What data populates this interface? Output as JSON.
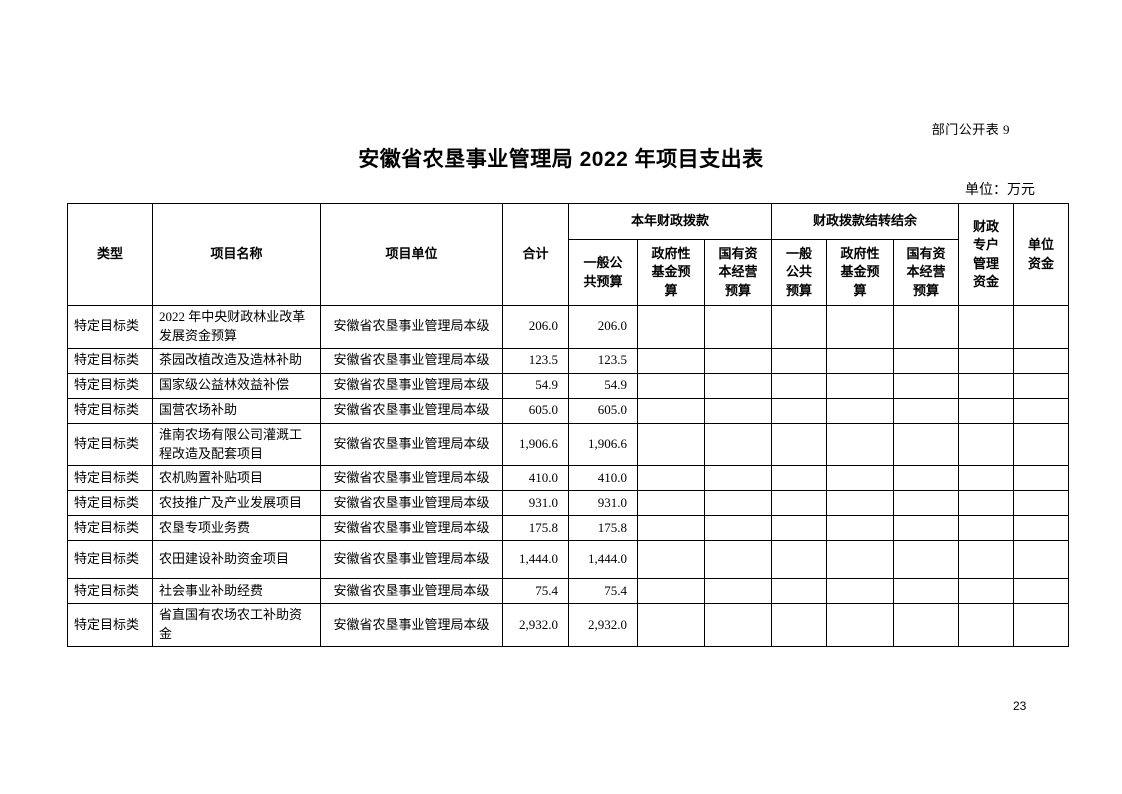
{
  "page": {
    "corner_label": "部门公开表 9",
    "title": "安徽省农垦事业管理局 2022 年项目支出表",
    "unit_label": "单位：万元",
    "page_number": "23"
  },
  "table": {
    "header": {
      "type": "类型",
      "project_name": "项目名称",
      "project_unit": "项目单位",
      "total": "合计",
      "current_year_group": "本年财政拨款",
      "carryover_group": "财政拨款结转结余",
      "cy_general_public": "一般公\n共预算",
      "cy_government_fund": "政府性\n基金预\n算",
      "cy_state_capital": "国有资\n本经营\n预算",
      "co_general_public": "一般\n公共\n预算",
      "co_government_fund": "政府性\n基金预\n算",
      "co_state_capital": "国有资\n本经营\n预算",
      "fiscal_special_account": "财政\n专户\n管理\n资金",
      "unit_funds": "单位\n资金"
    },
    "rows": [
      {
        "type": "特定目标类",
        "name": "2022 年中央财政林业改革发展资金预算",
        "unit": "安徽省农垦事业管理局本级",
        "total": "206.0",
        "cy_general": "206.0",
        "cy_gov_fund": "",
        "cy_state_capital": "",
        "co_general": "",
        "co_gov_fund": "",
        "co_state_capital": "",
        "special_account": "",
        "unit_funds": ""
      },
      {
        "type": "特定目标类",
        "name": "茶园改植改造及造林补助",
        "unit": "安徽省农垦事业管理局本级",
        "total": "123.5",
        "cy_general": "123.5",
        "cy_gov_fund": "",
        "cy_state_capital": "",
        "co_general": "",
        "co_gov_fund": "",
        "co_state_capital": "",
        "special_account": "",
        "unit_funds": ""
      },
      {
        "type": "特定目标类",
        "name": "国家级公益林效益补偿",
        "unit": "安徽省农垦事业管理局本级",
        "total": "54.9",
        "cy_general": "54.9",
        "cy_gov_fund": "",
        "cy_state_capital": "",
        "co_general": "",
        "co_gov_fund": "",
        "co_state_capital": "",
        "special_account": "",
        "unit_funds": ""
      },
      {
        "type": "特定目标类",
        "name": "国营农场补助",
        "unit": "安徽省农垦事业管理局本级",
        "total": "605.0",
        "cy_general": "605.0",
        "cy_gov_fund": "",
        "cy_state_capital": "",
        "co_general": "",
        "co_gov_fund": "",
        "co_state_capital": "",
        "special_account": "",
        "unit_funds": ""
      },
      {
        "type": "特定目标类",
        "name": "淮南农场有限公司灌溉工程改造及配套项目",
        "unit": "安徽省农垦事业管理局本级",
        "total": "1,906.6",
        "cy_general": "1,906.6",
        "cy_gov_fund": "",
        "cy_state_capital": "",
        "co_general": "",
        "co_gov_fund": "",
        "co_state_capital": "",
        "special_account": "",
        "unit_funds": ""
      },
      {
        "type": "特定目标类",
        "name": "农机购置补贴项目",
        "unit": "安徽省农垦事业管理局本级",
        "total": "410.0",
        "cy_general": "410.0",
        "cy_gov_fund": "",
        "cy_state_capital": "",
        "co_general": "",
        "co_gov_fund": "",
        "co_state_capital": "",
        "special_account": "",
        "unit_funds": ""
      },
      {
        "type": "特定目标类",
        "name": "农技推广及产业发展项目",
        "unit": "安徽省农垦事业管理局本级",
        "total": "931.0",
        "cy_general": "931.0",
        "cy_gov_fund": "",
        "cy_state_capital": "",
        "co_general": "",
        "co_gov_fund": "",
        "co_state_capital": "",
        "special_account": "",
        "unit_funds": ""
      },
      {
        "type": "特定目标类",
        "name": "农垦专项业务费",
        "unit": "安徽省农垦事业管理局本级",
        "total": "175.8",
        "cy_general": "175.8",
        "cy_gov_fund": "",
        "cy_state_capital": "",
        "co_general": "",
        "co_gov_fund": "",
        "co_state_capital": "",
        "special_account": "",
        "unit_funds": ""
      },
      {
        "type": "特定目标类",
        "name": "农田建设补助资金项目",
        "unit": "安徽省农垦事业管理局本级",
        "total": "1,444.0",
        "cy_general": "1,444.0",
        "cy_gov_fund": "",
        "cy_state_capital": "",
        "co_general": "",
        "co_gov_fund": "",
        "co_state_capital": "",
        "special_account": "",
        "unit_funds": ""
      },
      {
        "type": "特定目标类",
        "name": "社会事业补助经费",
        "unit": "安徽省农垦事业管理局本级",
        "total": "75.4",
        "cy_general": "75.4",
        "cy_gov_fund": "",
        "cy_state_capital": "",
        "co_general": "",
        "co_gov_fund": "",
        "co_state_capital": "",
        "special_account": "",
        "unit_funds": ""
      },
      {
        "type": "特定目标类",
        "name": "省直国有农场农工补助资金",
        "unit": "安徽省农垦事业管理局本级",
        "total": "2,932.0",
        "cy_general": "2,932.0",
        "cy_gov_fund": "",
        "cy_state_capital": "",
        "co_general": "",
        "co_gov_fund": "",
        "co_state_capital": "",
        "special_account": "",
        "unit_funds": ""
      }
    ]
  }
}
